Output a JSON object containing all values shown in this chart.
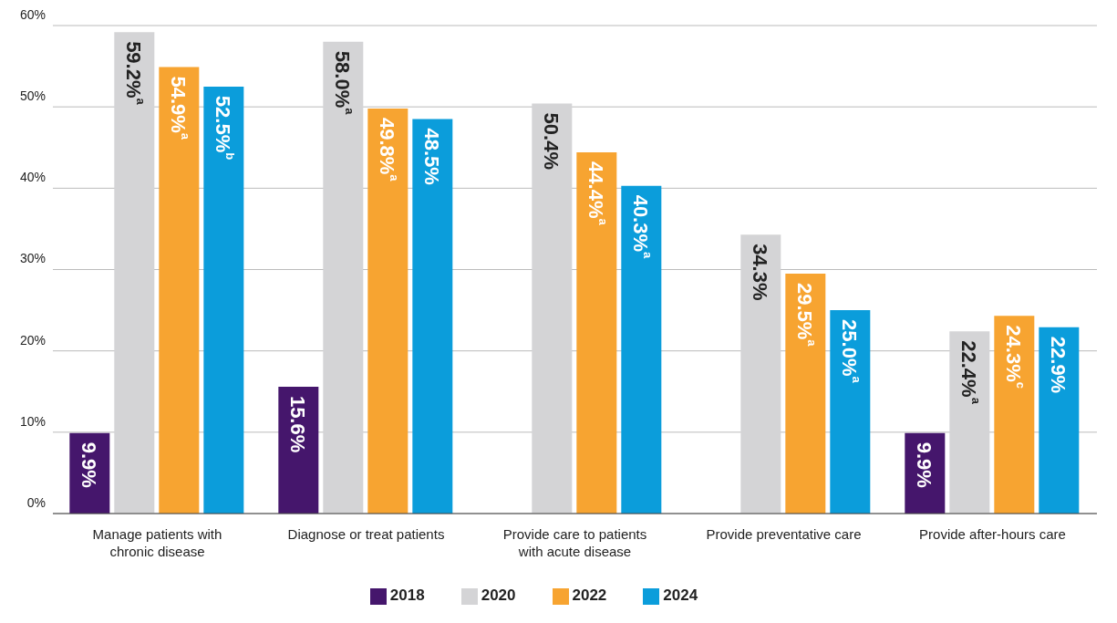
{
  "chart_data": {
    "type": "bar",
    "categories": [
      "Manage patients with chronic disease",
      "Diagnose or treat patients",
      "Provide care to patients with acute disease",
      "Provide preventative care",
      "Provide after-hours care"
    ],
    "series": [
      {
        "name": "2018",
        "color": "#45166c",
        "values": [
          9.9,
          15.6,
          null,
          null,
          9.9
        ],
        "value_labels": [
          "9.9%",
          "15.6%",
          null,
          null,
          "9.9%"
        ]
      },
      {
        "name": "2020",
        "color": "#d4d4d6",
        "values": [
          59.2,
          58.0,
          50.4,
          34.3,
          22.4
        ],
        "value_labels": [
          "59.2%$^{a}$",
          "58.0%$^{a}$",
          "50.4%",
          "34.3%",
          "22.4%$^{a}$"
        ]
      },
      {
        "name": "2022",
        "color": "#f7a431",
        "values": [
          54.9,
          49.8,
          44.4,
          29.5,
          24.3
        ],
        "value_labels": [
          "54.9%$^{a}$",
          "49.8%$^{a}$",
          "44.4%$^{a}$",
          "29.5%$^{a}$",
          "24.3%$^{c}$"
        ]
      },
      {
        "name": "2024",
        "color": "#0b9ddb",
        "values": [
          52.5,
          48.5,
          40.3,
          25.0,
          22.9
        ],
        "value_labels": [
          "52.5%$^{b}$",
          "48.5%",
          "40.3%$^{a}$",
          "25.0%$^{a}$",
          "22.9%"
        ]
      }
    ],
    "ylim": [
      0,
      60
    ],
    "yticks": [
      {
        "value": 0,
        "label": "0%"
      },
      {
        "value": 10,
        "label": "10%"
      },
      {
        "value": 20,
        "label": "20%"
      },
      {
        "value": 30,
        "label": "30%"
      },
      {
        "value": 40,
        "label": "40%"
      },
      {
        "value": 50,
        "label": "50%"
      },
      {
        "value": 60,
        "label": "60%"
      }
    ],
    "grid": "y",
    "legend": "bottom"
  }
}
